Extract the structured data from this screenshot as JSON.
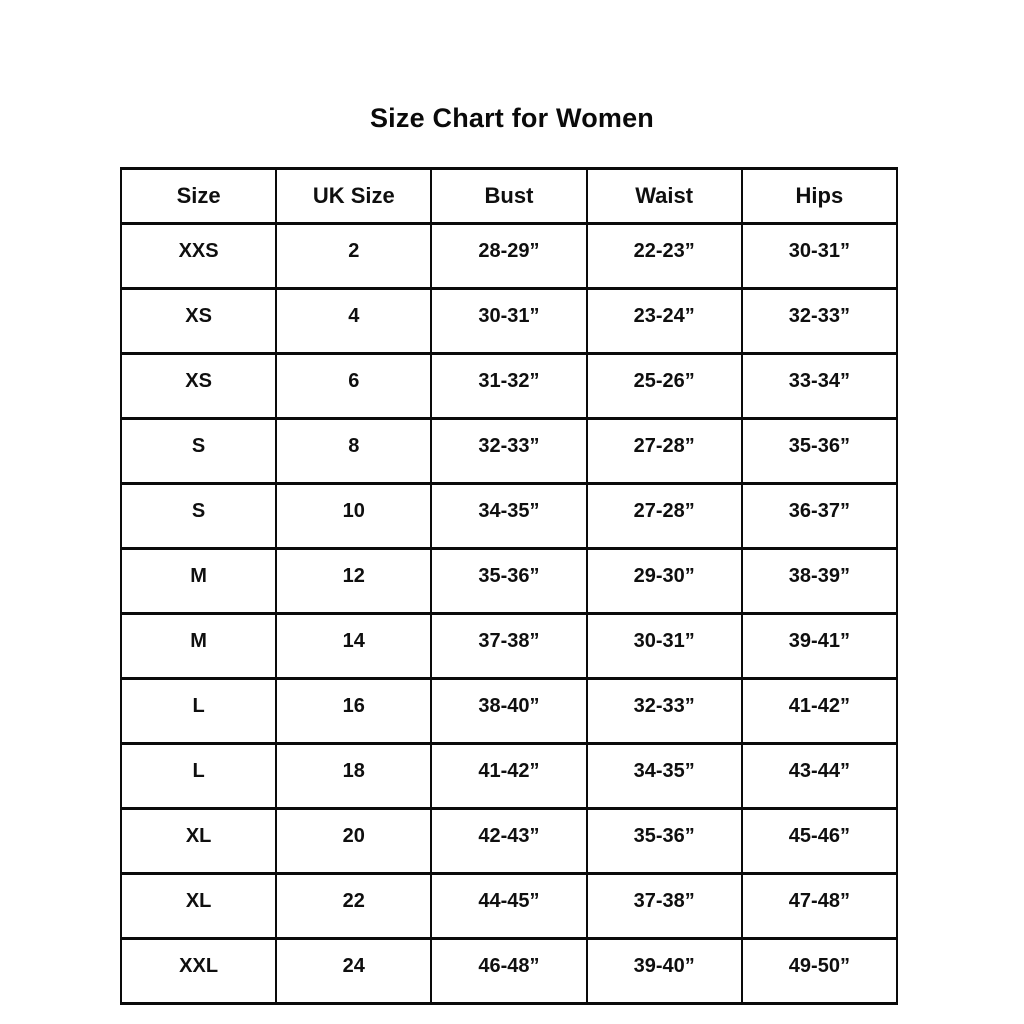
{
  "page": {
    "title": "Size Chart for Women"
  },
  "colors": {
    "background": "#ffffff",
    "text": "#0f0f0f",
    "border": "#0a0a0a"
  },
  "chart_data": {
    "type": "table",
    "title": "Size Chart for Women",
    "columns": [
      "Size",
      "UK Size",
      "Bust",
      "Waist",
      "Hips"
    ],
    "rows": [
      [
        "XXS",
        "2",
        "28-29”",
        "22-23”",
        "30-31”"
      ],
      [
        "XS",
        "4",
        "30-31”",
        "23-24”",
        "32-33”"
      ],
      [
        "XS",
        "6",
        "31-32”",
        "25-26”",
        "33-34”"
      ],
      [
        "S",
        "8",
        "32-33”",
        "27-28”",
        "35-36”"
      ],
      [
        "S",
        "10",
        "34-35”",
        "27-28”",
        "36-37”"
      ],
      [
        "M",
        "12",
        "35-36”",
        "29-30”",
        "38-39”"
      ],
      [
        "M",
        "14",
        "37-38”",
        "30-31”",
        "39-41”"
      ],
      [
        "L",
        "16",
        "38-40”",
        "32-33”",
        "41-42”"
      ],
      [
        "L",
        "18",
        "41-42”",
        "34-35”",
        "43-44”"
      ],
      [
        "XL",
        "20",
        "42-43”",
        "35-36”",
        "45-46”"
      ],
      [
        "XL",
        "22",
        "44-45”",
        "37-38”",
        "47-48”"
      ],
      [
        "XXL",
        "24",
        "46-48”",
        "39-40”",
        "49-50”"
      ]
    ],
    "layout": {
      "grid": "full-borders",
      "text_style": "bold",
      "alignment": "center"
    }
  }
}
